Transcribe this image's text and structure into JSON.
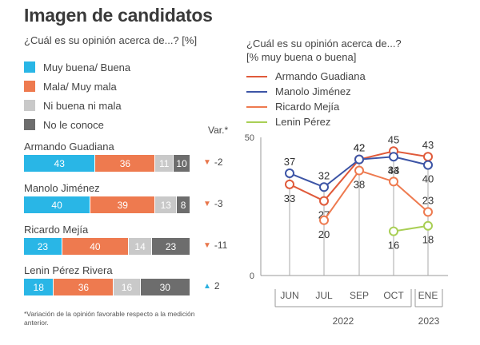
{
  "title": "Imagen de candidatos",
  "left_subtitle": "¿Cuál es su opinión acerca de...? [%]",
  "right_subtitle_1": "¿Cuál es su opinión acerca de...?",
  "right_subtitle_2": "[% muy buena o buena]",
  "var_header": "Var.*",
  "footnote": "*Variación de la opinión favorable respecto a la medición anterior.",
  "colors": {
    "buena": "#29b6e6",
    "mala": "#ee7a4f",
    "ni": "#c9c9c9",
    "no": "#6d6d6d"
  },
  "legend": [
    {
      "label": "Muy buena/ Buena",
      "color": "#29b6e6"
    },
    {
      "label": "Mala/ Muy mala",
      "color": "#ee7a4f"
    },
    {
      "label": "Ni buena ni mala",
      "color": "#c9c9c9"
    },
    {
      "label": "No le conoce",
      "color": "#6d6d6d"
    }
  ],
  "candidates": [
    {
      "name": "Armando Guadiana",
      "values": [
        43,
        36,
        11,
        10
      ],
      "var": "-2",
      "dir": "down"
    },
    {
      "name": "Manolo Jiménez",
      "values": [
        40,
        39,
        13,
        8
      ],
      "var": "-3",
      "dir": "down"
    },
    {
      "name": "Ricardo Mejía",
      "values": [
        23,
        40,
        14,
        23
      ],
      "var": "-11",
      "dir": "down"
    },
    {
      "name": "Lenin Pérez Rivera",
      "values": [
        18,
        36,
        16,
        30
      ],
      "var": "2",
      "dir": "up"
    }
  ],
  "chart_data": [
    {
      "type": "bar",
      "title": "Imagen de candidatos",
      "subtitle": "¿Cuál es su opinión acerca de...? [%]",
      "categories": [
        "Armando Guadiana",
        "Manolo Jiménez",
        "Ricardo Mejía",
        "Lenin Pérez Rivera"
      ],
      "series": [
        {
          "name": "Muy buena/ Buena",
          "values": [
            43,
            40,
            23,
            18
          ]
        },
        {
          "name": "Mala/ Muy mala",
          "values": [
            36,
            39,
            40,
            36
          ]
        },
        {
          "name": "Ni buena ni mala",
          "values": [
            11,
            13,
            14,
            16
          ]
        },
        {
          "name": "No le conoce",
          "values": [
            10,
            8,
            23,
            30
          ]
        }
      ],
      "var": [
        "-2",
        "-3",
        "-11",
        "2"
      ],
      "stacked": true,
      "orientation": "horizontal"
    },
    {
      "type": "line",
      "title": "¿Cuál es su opinión acerca de...?",
      "subtitle": "[% muy buena o buena]",
      "x": [
        "JUN",
        "JUL",
        "SEP",
        "OCT",
        "ENE"
      ],
      "year_labels": [
        "2022",
        "2023"
      ],
      "ylim": [
        0,
        50
      ],
      "yticks": [
        0,
        50
      ],
      "grid": false,
      "legend": "top-left",
      "series": [
        {
          "name": "Armando Guadiana",
          "color": "#e05a3a",
          "values": [
            33,
            27,
            42,
            45,
            43
          ]
        },
        {
          "name": "Manolo Jiménez",
          "color": "#3d55a6",
          "values": [
            37,
            32,
            42,
            43,
            40
          ]
        },
        {
          "name": "Ricardo Mejía",
          "color": "#ee7a4f",
          "values": [
            null,
            20,
            38,
            34,
            23
          ]
        },
        {
          "name": "Lenin Pérez",
          "color": "#a9cf55",
          "values": [
            null,
            null,
            null,
            16,
            18
          ]
        }
      ]
    }
  ]
}
